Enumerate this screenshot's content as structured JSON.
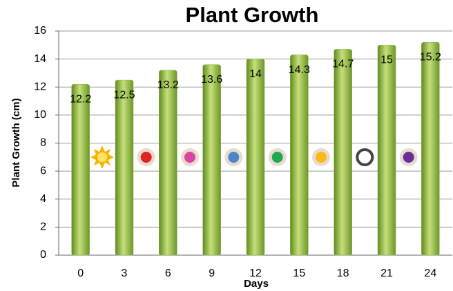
{
  "chart_data": {
    "type": "bar",
    "title": "Plant Growth",
    "x_label": "Days",
    "y_label": "Plant Growth (cm)",
    "categories": [
      "0",
      "3",
      "6",
      "9",
      "12",
      "15",
      "18",
      "21",
      "24"
    ],
    "values": [
      12.2,
      12.5,
      13.2,
      13.6,
      14,
      14.3,
      14.7,
      15,
      15.2
    ],
    "color": "#8db23f",
    "ylim": [
      0,
      16
    ],
    "yticks": [
      0,
      2,
      4,
      6,
      8,
      10,
      12,
      14,
      16
    ],
    "grid": true
  }
}
